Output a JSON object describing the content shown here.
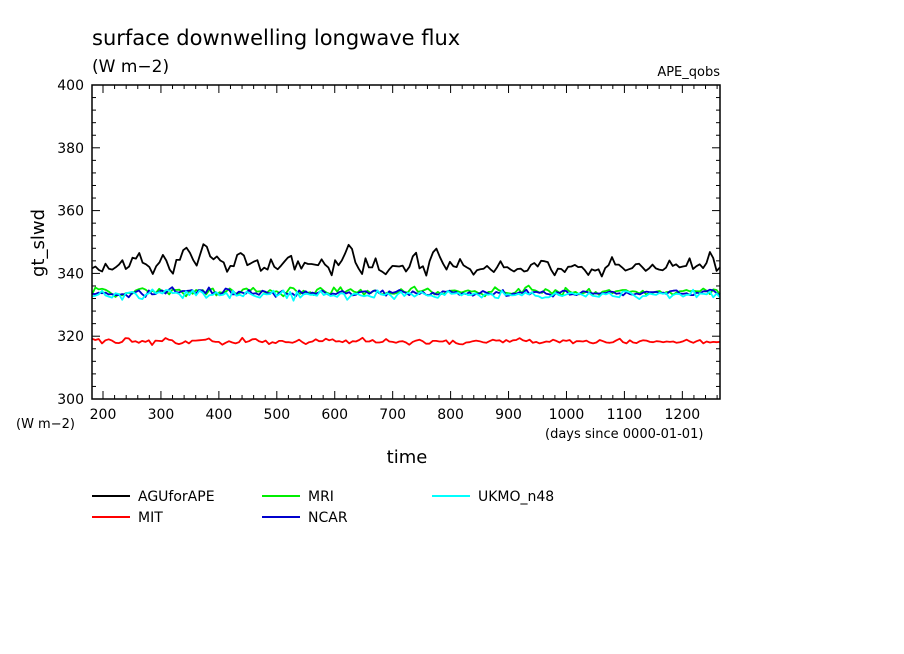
{
  "chart_data": {
    "type": "line",
    "title": "surface downwelling longwave flux",
    "subtitle": "(W m−2)",
    "experiment": "APE_qobs",
    "xlabel": "time",
    "x_units": "(days since 0000-01-01)",
    "ylabel": "gt_slwd",
    "y_units": "(W m−2)",
    "xlim": [
      181,
      1265
    ],
    "ylim": [
      300,
      400
    ],
    "x_ticks": [
      200,
      300,
      400,
      500,
      600,
      700,
      800,
      900,
      1000,
      1100,
      1200
    ],
    "y_ticks": [
      300,
      320,
      340,
      360,
      380,
      400
    ],
    "x_range": [
      181,
      1265
    ],
    "series": [
      {
        "name": "AGUforAPE",
        "color": "#000000",
        "values": [
          341.6,
          342.2,
          341.1,
          340.6,
          343.1,
          341.5,
          341.2,
          341.9,
          342.8,
          344.2,
          341.4,
          342.2,
          345.0,
          344.7,
          346.5,
          343.4,
          342.9,
          342.0,
          339.8,
          342.3,
          343.5,
          345.9,
          344.1,
          341.2,
          339.9,
          344.3,
          344.3,
          347.4,
          348.2,
          346.6,
          344.2,
          342.5,
          345.9,
          349.3,
          348.5,
          345.4,
          344.5,
          345.4,
          344.1,
          343.5,
          340.5,
          342.4,
          342.3,
          345.9,
          346.5,
          345.7,
          342.6,
          343.2,
          343.8,
          344.2,
          340.8,
          341.8,
          341.2,
          344.5,
          342.1,
          341.3,
          342.5,
          343.8,
          345.0,
          345.6,
          341.2,
          343.9,
          341.5,
          343.4,
          343.0,
          343.0,
          342.8,
          342.6,
          344.5,
          342.8,
          341.9,
          339.4,
          344.2,
          342.6,
          344.1,
          346.4,
          349.1,
          347.8,
          343.5,
          341.5,
          339.8,
          344.8,
          341.9,
          341.9,
          344.8,
          341.1,
          340.5,
          339.7,
          341.2,
          342.4,
          342.3,
          342.2,
          342.5,
          340.6,
          342.1,
          345.4,
          346.6,
          341.6,
          342.3,
          339.3,
          343.9,
          346.7,
          347.9,
          345.3,
          343.1,
          341.2,
          343.7,
          342.3,
          342.0,
          344.6,
          342.6,
          341.9,
          341.3,
          339.6,
          341.0,
          341.3,
          341.5,
          342.4,
          341.3,
          340.4,
          342.0,
          343.9,
          341.9,
          342.0,
          341.2,
          340.6,
          341.4,
          341.5,
          340.6,
          340.9,
          342.7,
          343.3,
          342.2,
          344.0,
          343.9,
          343.6,
          341.1,
          339.4,
          341.5,
          341.4,
          340.4,
          342.1,
          342.2,
          342.7,
          342.0,
          342.1,
          341.0,
          339.5,
          341.3,
          340.9,
          341.3,
          339.0,
          341.7,
          342.6,
          345.2,
          342.8,
          342.8,
          341.9,
          340.9,
          341.3,
          341.7,
          342.9,
          343.1,
          342.0,
          340.8,
          341.6,
          342.8,
          341.6,
          341.2,
          341.0,
          341.8,
          344.1,
          342.4,
          342.9,
          341.9,
          342.2,
          342.4,
          344.8,
          341.4,
          342.3,
          342.9,
          341.7,
          343.3,
          346.8,
          344.9,
          340.8,
          341.9
        ]
      },
      {
        "name": "MIT",
        "color": "#ff0000",
        "values": [
          319.2,
          318.8,
          319.1,
          317.7,
          318.7,
          319.0,
          318.6,
          317.9,
          317.8,
          318.2,
          319.4,
          319.3,
          318.2,
          318.4,
          317.9,
          318.5,
          318.2,
          318.7,
          317.2,
          318.6,
          318.5,
          318.4,
          319.4,
          318.9,
          318.7,
          317.8,
          317.5,
          317.8,
          318.4,
          317.7,
          318.6,
          318.6,
          318.7,
          318.8,
          318.9,
          319.3,
          318.4,
          318.2,
          318.2,
          317.3,
          317.9,
          318.4,
          318.0,
          317.7,
          318.1,
          319.5,
          318.1,
          318.4,
          319.0,
          319.1,
          318.4,
          318.1,
          318.6,
          317.5,
          318.1,
          317.8,
          318.5,
          318.5,
          318.1,
          318.1,
          317.9,
          318.3,
          318.9,
          318.1,
          317.5,
          318.1,
          318.3,
          319.0,
          318.4,
          318.4,
          319.2,
          318.7,
          319.0,
          318.3,
          318.4,
          318.1,
          318.7,
          317.7,
          318.4,
          318.3,
          318.8,
          319.5,
          318.3,
          318.3,
          318.8,
          318.0,
          318.0,
          318.2,
          319.1,
          318.3,
          318.2,
          317.9,
          318.3,
          318.4,
          318.0,
          317.3,
          318.2,
          318.6,
          318.9,
          318.4,
          317.6,
          317.6,
          318.5,
          318.5,
          318.3,
          318.3,
          318.7,
          317.5,
          318.6,
          317.8,
          317.5,
          317.4,
          318.0,
          318.1,
          318.4,
          318.6,
          318.4,
          318.1,
          317.9,
          318.4,
          318.9,
          318.6,
          318.7,
          318.0,
          318.8,
          318.2,
          318.7,
          318.8,
          319.4,
          318.7,
          318.4,
          318.9,
          317.9,
          318.2,
          317.7,
          318.0,
          318.3,
          318.2,
          318.9,
          318.5,
          318.0,
          318.7,
          318.5,
          318.8,
          317.7,
          318.4,
          318.4,
          318.3,
          318.6,
          318.0,
          317.7,
          318.0,
          318.8,
          318.4,
          318.0,
          317.9,
          318.1,
          318.7,
          319.2,
          318.1,
          317.7,
          318.7,
          318.0,
          317.8,
          318.4,
          318.7,
          318.6,
          318.2,
          318.1,
          318.4,
          318.3,
          318.1,
          318.3,
          318.2,
          318.3,
          317.9,
          318.1,
          318.4,
          318.9,
          318.3,
          317.9,
          318.4,
          318.8,
          317.7,
          318.3,
          318.0,
          318.2,
          318.1,
          318.2
        ]
      },
      {
        "name": "MRI",
        "color": "#00ee00",
        "values": [
          333.3,
          335.5,
          334.9,
          335.1,
          334.8,
          334.2,
          333.4,
          332.5,
          333.4,
          333.0,
          333.7,
          333.8,
          333.5,
          334.6,
          335.0,
          335.3,
          334.8,
          333.9,
          334.5,
          333.8,
          335.1,
          334.3,
          334.4,
          333.3,
          334.9,
          334.7,
          334.8,
          333.8,
          332.7,
          334.4,
          333.5,
          334.7,
          334.4,
          334.7,
          333.3,
          334.8,
          335.2,
          333.0,
          334.0,
          333.8,
          334.3,
          335.2,
          334.4,
          333.3,
          333.8,
          334.9,
          335.2,
          334.4,
          335.4,
          334.2,
          334.3,
          334.3,
          333.8,
          334.7,
          334.1,
          334.3,
          333.6,
          332.7,
          334.0,
          335.5,
          335.3,
          334.2,
          333.5,
          334.5,
          333.8,
          334.0,
          333.1,
          334.8,
          335.4,
          334.5,
          333.8,
          333.4,
          335.5,
          334.2,
          335.6,
          333.8,
          334.5,
          335.0,
          334.2,
          333.9,
          334.8,
          333.2,
          334.5,
          333.7,
          334.6,
          334.2,
          333.4,
          333.4,
          333.9,
          333.6,
          333.5,
          333.9,
          335.0,
          334.1,
          333.9,
          335.2,
          335.8,
          334.2,
          334.3,
          334.7,
          335.2,
          334.2,
          333.3,
          334.1,
          333.4,
          333.6,
          334.4,
          334.5,
          334.6,
          334.3,
          333.9,
          334.3,
          334.6,
          334.2,
          334.4,
          333.8,
          333.5,
          332.7,
          334.1,
          334.1,
          335.6,
          334.7,
          334.3,
          333.9,
          333.7,
          333.5,
          333.9,
          335.1,
          333.7,
          335.4,
          336.1,
          334.8,
          334.6,
          334.0,
          333.8,
          335.0,
          334.5,
          333.5,
          334.7,
          334.0,
          332.8,
          335.4,
          334.4,
          333.8,
          334.1,
          333.3,
          333.6,
          334.0,
          335.1,
          333.2,
          334.1,
          333.2,
          334.2,
          334.4,
          334.7,
          333.7,
          334.3,
          334.5,
          334.7,
          334.7,
          334.1,
          334.3,
          334.2,
          333.6,
          334.5,
          333.3,
          333.7,
          333.9,
          334.2,
          334.4,
          333.6,
          334.0,
          334.1,
          333.2,
          333.9,
          334.3,
          334.4,
          334.7,
          334.3,
          334.5,
          334.3,
          334.3,
          335.2,
          334.5,
          333.4,
          334.9,
          334.7,
          333.3
        ]
      },
      {
        "name": "NCAR",
        "color": "#0000cd",
        "values": [
          333.5,
          333.4,
          333.9,
          333.7,
          333.9,
          333.3,
          333.4,
          333.1,
          333.1,
          333.4,
          333.3,
          332.4,
          333.8,
          334.0,
          334.6,
          333.4,
          332.5,
          334.6,
          333.3,
          333.4,
          334.2,
          334.6,
          333.6,
          334.8,
          335.6,
          334.1,
          333.9,
          334.4,
          334.4,
          334.5,
          334.7,
          333.4,
          334.7,
          334.6,
          333.7,
          335.5,
          333.6,
          334.0,
          333.2,
          333.7,
          335.2,
          334.8,
          333.3,
          333.3,
          334.2,
          333.9,
          333.5,
          334.7,
          333.5,
          333.7,
          333.2,
          334.5,
          334.1,
          333.6,
          334.0,
          332.5,
          333.8,
          334.5,
          333.6,
          333.3,
          333.6,
          332.7,
          334.6,
          333.6,
          334.3,
          333.4,
          333.9,
          333.5,
          334.0,
          334.5,
          333.7,
          333.1,
          333.6,
          333.4,
          334.0,
          334.4,
          333.6,
          334.0,
          333.0,
          333.2,
          334.0,
          334.2,
          334.3,
          333.5,
          334.3,
          334.6,
          333.7,
          334.6,
          332.9,
          334.3,
          333.8,
          334.1,
          334.7,
          334.2,
          333.8,
          333.1,
          334.3,
          333.7,
          333.4,
          334.2,
          333.2,
          333.1,
          333.9,
          333.3,
          333.3,
          334.3,
          334.1,
          334.5,
          333.9,
          334.1,
          333.2,
          333.7,
          333.4,
          334.0,
          332.9,
          333.5,
          333.6,
          334.4,
          333.9,
          333.5,
          333.2,
          334.1,
          333.7,
          334.7,
          332.8,
          333.0,
          333.6,
          333.5,
          334.0,
          333.8,
          334.8,
          333.3,
          334.0,
          334.1,
          333.8,
          334.3,
          333.5,
          333.3,
          332.6,
          334.0,
          333.8,
          334.5,
          334.4,
          333.2,
          333.4,
          333.1,
          333.6,
          334.3,
          334.1,
          333.8,
          333.6,
          333.6,
          333.6,
          333.7,
          333.8,
          334.2,
          334.1,
          333.5,
          333.7,
          333.0,
          334.0,
          333.4,
          333.2,
          333.6,
          333.3,
          333.9,
          334.2,
          334.0,
          334.0,
          334.1,
          333.7,
          333.9,
          333.4,
          334.3,
          334.5,
          334.6,
          333.6,
          333.5,
          333.7,
          333.1,
          333.1,
          333.9,
          333.6,
          334.3,
          334.3,
          334.8,
          334.6,
          333.7,
          333.0
        ]
      },
      {
        "name": "UKMO_n48",
        "color": "#00ffff",
        "values": [
          332.7,
          332.9,
          333.3,
          334.5,
          333.0,
          332.6,
          332.3,
          333.7,
          333.4,
          331.6,
          333.6,
          333.9,
          334.1,
          333.5,
          332.1,
          331.8,
          333.2,
          333.7,
          334.9,
          333.6,
          334.0,
          333.6,
          334.7,
          334.6,
          333.7,
          333.9,
          333.4,
          332.1,
          334.3,
          333.1,
          334.6,
          333.0,
          334.5,
          333.8,
          332.2,
          333.1,
          333.2,
          334.0,
          333.0,
          333.2,
          333.8,
          332.1,
          334.5,
          332.9,
          333.2,
          332.7,
          334.2,
          333.6,
          333.0,
          332.6,
          332.3,
          333.5,
          333.3,
          333.4,
          334.5,
          332.8,
          333.5,
          334.6,
          332.1,
          334.1,
          331.3,
          334.1,
          332.3,
          333.3,
          333.5,
          333.2,
          333.2,
          332.9,
          334.5,
          333.1,
          333.6,
          332.8,
          333.0,
          332.5,
          333.7,
          333.5,
          331.6,
          332.8,
          333.5,
          333.5,
          333.0,
          332.7,
          333.0,
          332.6,
          332.3,
          334.6,
          333.3,
          333.1,
          333.7,
          332.9,
          331.8,
          333.3,
          334.1,
          332.8,
          333.8,
          333.5,
          332.6,
          333.3,
          334.1,
          333.4,
          332.9,
          333.0,
          332.5,
          332.2,
          333.7,
          333.1,
          334.4,
          333.5,
          333.6,
          333.8,
          333.0,
          333.7,
          333.1,
          333.2,
          333.7,
          333.2,
          332.3,
          333.4,
          333.2,
          333.5,
          332.3,
          332.1,
          334.5,
          333.2,
          333.3,
          333.0,
          333.1,
          333.5,
          333.0,
          333.9,
          333.3,
          334.0,
          332.9,
          332.7,
          332.1,
          332.4,
          332.4,
          333.0,
          333.8,
          333.1,
          332.8,
          333.2,
          333.6,
          333.8,
          333.3,
          333.6,
          333.2,
          332.6,
          333.8,
          332.9,
          332.7,
          332.5,
          333.6,
          333.3,
          333.8,
          332.8,
          332.6,
          332.4,
          334.2,
          334.3,
          334.0,
          333.3,
          332.5,
          331.8,
          332.8,
          332.8,
          333.6,
          333.3,
          333.2,
          333.8,
          333.5,
          333.7,
          332.1,
          333.1,
          333.5,
          333.4,
          332.6,
          333.2,
          333.2,
          334.8,
          332.4,
          333.6,
          333.5,
          333.3,
          334.2,
          332.4,
          333.6,
          332.3
        ]
      }
    ],
    "legend_placement": "bottom-left",
    "grid": false
  }
}
